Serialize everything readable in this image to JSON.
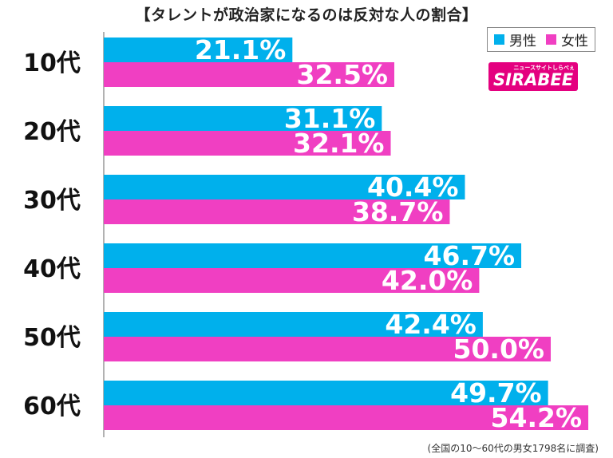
{
  "title": "【タレントが政治家になるのは反対な人の割合】",
  "legend": {
    "male_label": "男性",
    "female_label": "女性"
  },
  "logo": {
    "wordmark": "SIRABEE",
    "tagline": "ニュースサイトしらべぇ"
  },
  "footnote": "(全国の10〜60代の男女1798名に調査)",
  "colors": {
    "male": "#00b0ec",
    "female": "#f03fc2"
  },
  "chart_data": {
    "type": "bar",
    "orientation": "horizontal",
    "categories": [
      "10代",
      "20代",
      "30代",
      "40代",
      "50代",
      "60代"
    ],
    "series": [
      {
        "name": "男性",
        "values": [
          21.1,
          31.1,
          40.4,
          46.7,
          42.4,
          49.7
        ]
      },
      {
        "name": "女性",
        "values": [
          32.5,
          32.1,
          38.7,
          42.0,
          50.0,
          54.2
        ]
      }
    ],
    "value_suffix": "%",
    "xlim": [
      0,
      60
    ],
    "grid": false,
    "legend_position": "top-right"
  }
}
